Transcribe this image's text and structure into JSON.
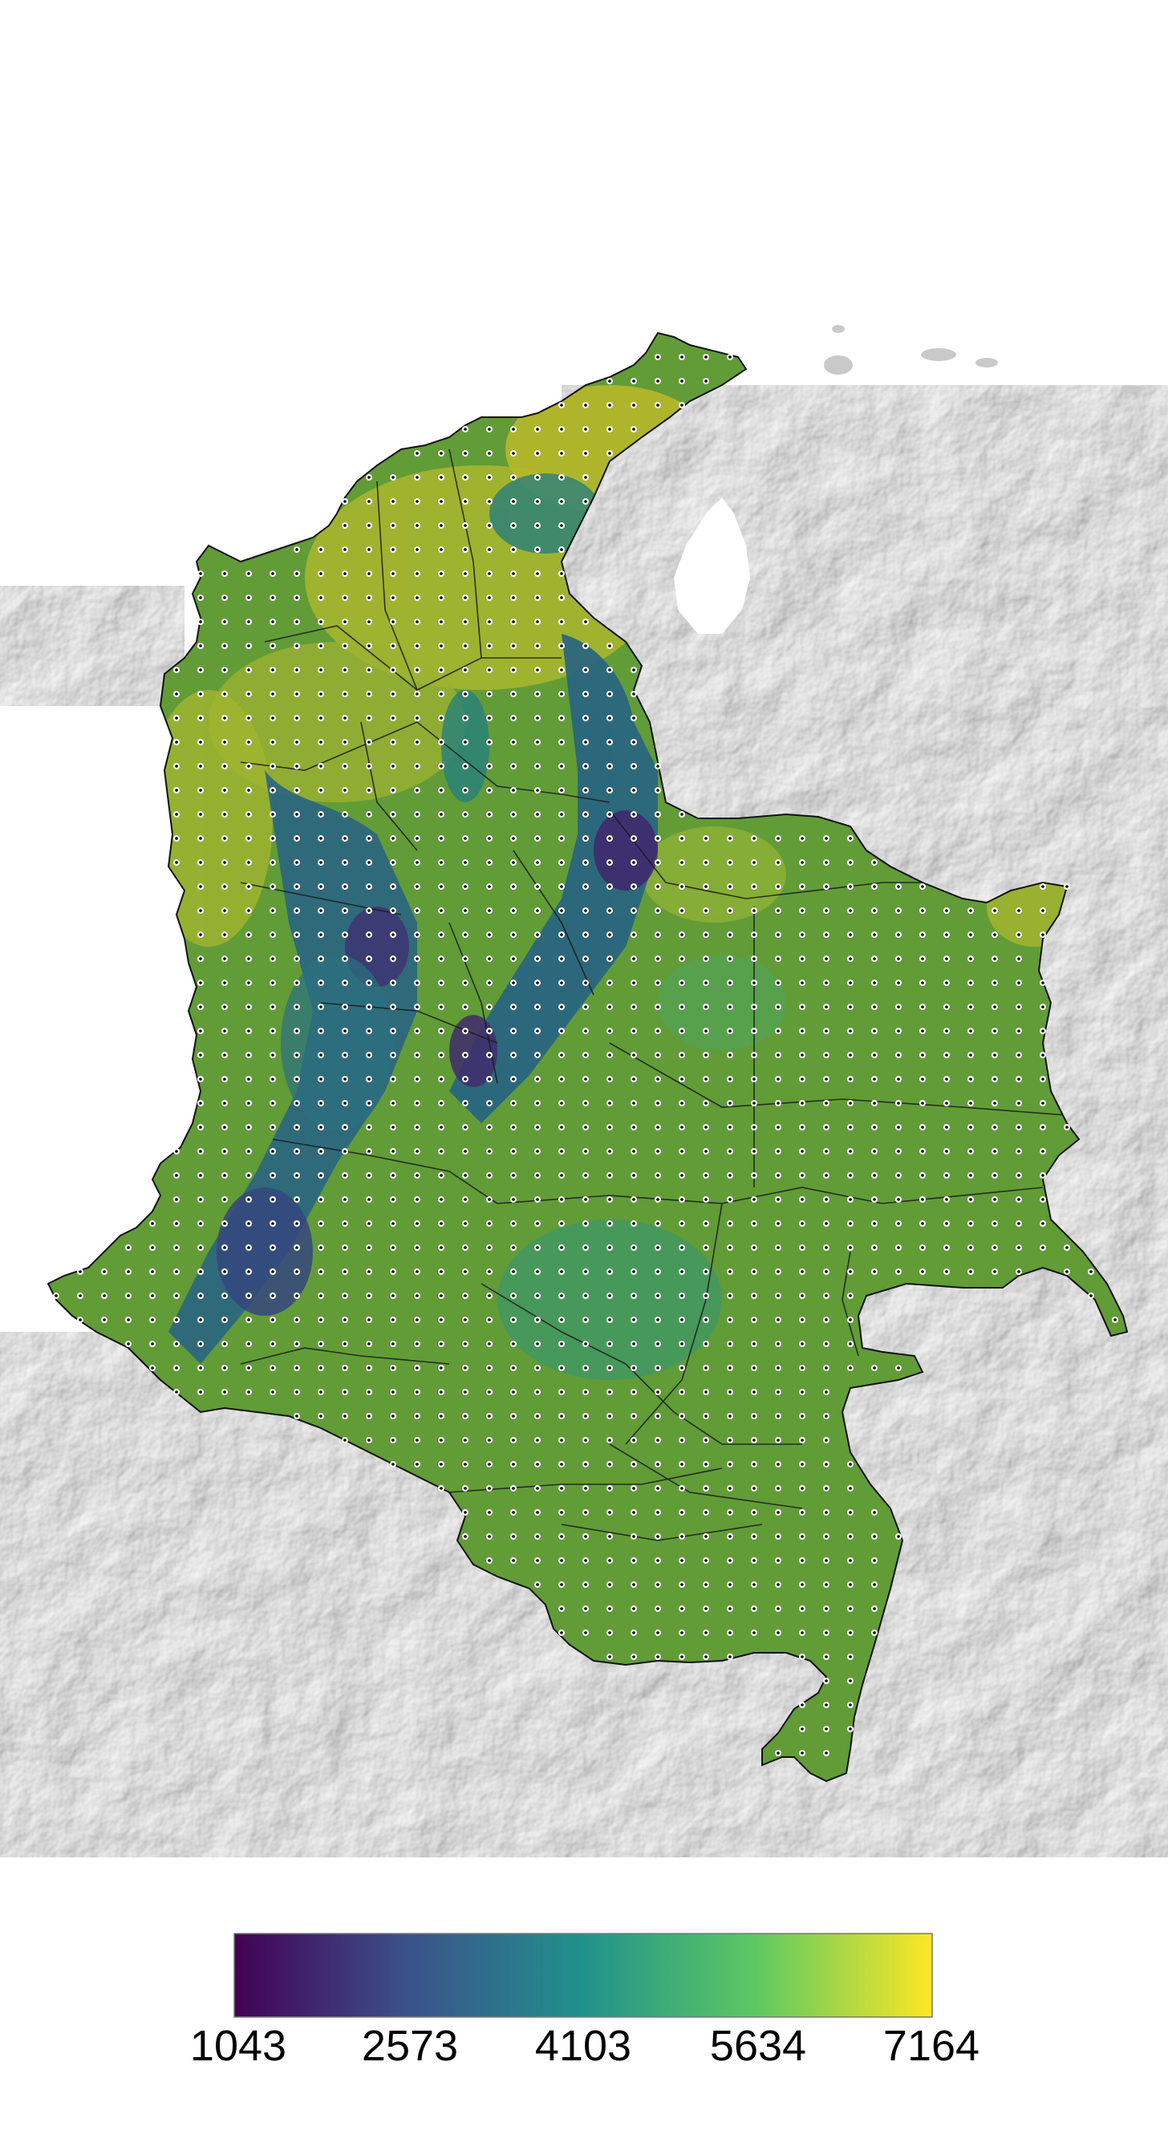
{
  "map": {
    "background_relief": "grayscale shaded relief",
    "region_fill": "viridis-colored raster",
    "station_marker": "white-ring-black-dot",
    "boundary_color": "#000000"
  },
  "legend": {
    "colormap": "viridis",
    "colors": [
      "#440154",
      "#3b528b",
      "#21918c",
      "#5ec962",
      "#fde725"
    ],
    "ticks": [
      "1043",
      "2573",
      "4103",
      "5634",
      "7164"
    ]
  }
}
